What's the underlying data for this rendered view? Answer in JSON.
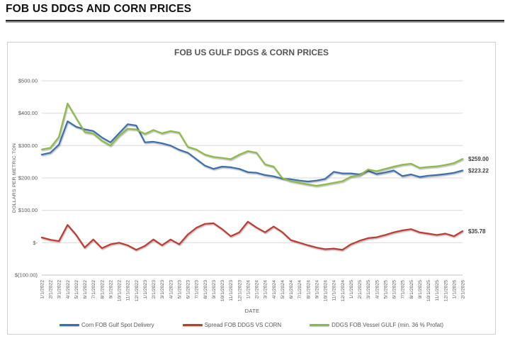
{
  "page": {
    "header": "FOB US DDGS AND CORN PRICES"
  },
  "chart_data": {
    "type": "line",
    "title": "FOB US GULF DDGS & CORN PRICES",
    "xlabel": "DATE",
    "ylabel": "DOLLARS PER METRIC TON",
    "ylim": [
      -100,
      500
    ],
    "grid": true,
    "legend_position": "bottom",
    "y_ticks": [
      {
        "value": 500,
        "label": "$500.00"
      },
      {
        "value": 400,
        "label": "$400.00"
      },
      {
        "value": 300,
        "label": "$300.00"
      },
      {
        "value": 200,
        "label": "$200.00"
      },
      {
        "value": 100,
        "label": "$100.00"
      },
      {
        "value": 0,
        "label": "$-"
      },
      {
        "value": -100,
        "label": "$(100.00)"
      }
    ],
    "categories": [
      "1/1/2022",
      "2/1/2022",
      "3/1/2022",
      "4/1/2022",
      "5/1/2022",
      "6/1/2022",
      "7/1/2022",
      "8/1/2022",
      "9/1/2022",
      "10/1/2022",
      "11/1/2022",
      "12/1/2022",
      "1/1/2023",
      "2/1/2023",
      "3/1/2023",
      "4/1/2023",
      "5/1/2023",
      "6/1/2023",
      "7/1/2023",
      "8/1/2023",
      "9/1/2023",
      "10/1/2023",
      "11/1/2023",
      "12/1/2023",
      "1/1/2024",
      "2/1/2024",
      "3/1/2024",
      "4/1/2024",
      "5/1/2024",
      "6/1/2024",
      "7/1/2024",
      "8/1/2024",
      "9/1/2024",
      "10/1/2024",
      "11/1/2024",
      "12/1/2024",
      "1/1/2025",
      "2/1/2025",
      "3/1/2025",
      "4/1/2025",
      "5/1/2025",
      "6/1/2025",
      "7/1/2025",
      "8/1/2025",
      "9/1/2025",
      "10/1/2025",
      "11/1/2025",
      "12/1/2025",
      "1/1/2026",
      "2/1/2026"
    ],
    "series": [
      {
        "name": "Corn FOB Gulf Spot Delivery",
        "color": "#3A6FAC",
        "end_label": "$223.22",
        "values": [
          272,
          278,
          303,
          375,
          358,
          350,
          345,
          325,
          310,
          338,
          366,
          362,
          310,
          312,
          307,
          300,
          287,
          278,
          258,
          238,
          228,
          235,
          233,
          228,
          218,
          216,
          209,
          205,
          198,
          196,
          192,
          189,
          192,
          197,
          219,
          214,
          214,
          211,
          222,
          212,
          217,
          223,
          206,
          211,
          203,
          207,
          209,
          212,
          216,
          223.22
        ]
      },
      {
        "name": "Spread FOB DDGS VS CORN",
        "color": "#BE3B32",
        "end_label": "$35.78",
        "values": [
          16,
          9,
          5,
          55,
          24,
          -15,
          10,
          -17,
          -5,
          0,
          -8,
          -22,
          -10,
          10,
          -8,
          10,
          -5,
          25,
          46,
          58,
          60,
          42,
          20,
          32,
          65,
          47,
          32,
          50,
          33,
          8,
          0,
          -8,
          -15,
          -20,
          -18,
          -22,
          -5,
          6,
          14,
          17,
          24,
          32,
          38,
          42,
          32,
          28,
          24,
          28,
          20,
          35.78
        ]
      },
      {
        "name": "DDGS FOB Vessel GULF  (min. 36 % Profat)",
        "color": "#8CBA4A",
        "end_label": "$259.00",
        "values": [
          288,
          293,
          327,
          430,
          385,
          342,
          337,
          315,
          300,
          330,
          352,
          350,
          336,
          348,
          338,
          345,
          340,
          296,
          288,
          272,
          265,
          262,
          258,
          272,
          283,
          278,
          242,
          235,
          200,
          190,
          185,
          180,
          176,
          180,
          185,
          190,
          204,
          208,
          226,
          221,
          228,
          235,
          241,
          244,
          231,
          234,
          236,
          240,
          246,
          259
        ]
      }
    ]
  }
}
